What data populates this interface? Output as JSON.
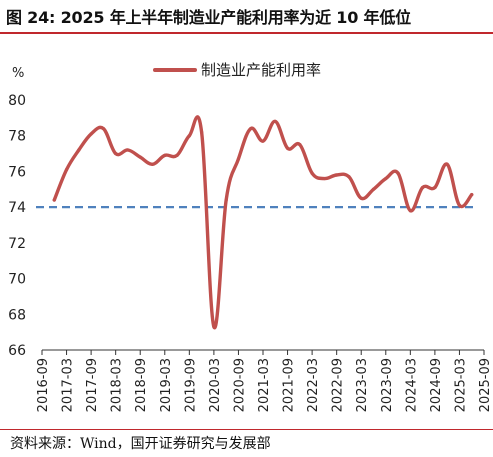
{
  "header": {
    "title": "图 24: 2025 年上半年制造业产能利用率为近 10 年低位"
  },
  "source": {
    "text": "资料来源：Wind，国开证券研究与发展部"
  },
  "colors": {
    "title_rule": "#c0282d",
    "series_line": "#c0504d",
    "reference_line": "#4f81bd"
  },
  "chart_data": {
    "type": "line",
    "ylabel": "%",
    "ylim": [
      66,
      80
    ],
    "yticks": [
      66,
      68,
      70,
      72,
      74,
      76,
      78,
      80
    ],
    "xticks": [
      "2016-09",
      "2017-03",
      "2017-09",
      "2018-03",
      "2018-09",
      "2019-03",
      "2019-09",
      "2020-03",
      "2020-09",
      "2021-03",
      "2021-09",
      "2022-03",
      "2022-09",
      "2023-03",
      "2023-09",
      "2024-03",
      "2024-09",
      "2025-03",
      "2025-09"
    ],
    "legend": {
      "position": "top-center",
      "label": "制造业产能利用率"
    },
    "grid": false,
    "series": [
      {
        "name": "制造业产能利用率",
        "x": [
          "2016-12",
          "2017-03",
          "2017-06",
          "2017-09",
          "2017-12",
          "2018-03",
          "2018-06",
          "2018-09",
          "2018-12",
          "2019-03",
          "2019-06",
          "2019-09",
          "2019-12",
          "2020-03",
          "2020-06",
          "2020-09",
          "2020-12",
          "2021-03",
          "2021-06",
          "2021-09",
          "2021-12",
          "2022-03",
          "2022-06",
          "2022-09",
          "2022-12",
          "2023-03",
          "2023-06",
          "2023-09",
          "2023-12",
          "2024-03",
          "2024-06",
          "2024-09",
          "2024-12",
          "2025-03",
          "2025-06"
        ],
        "values": [
          74.4,
          76.1,
          77.2,
          78.1,
          78.4,
          77.0,
          77.2,
          76.8,
          76.4,
          76.9,
          76.9,
          78.0,
          78.2,
          67.3,
          74.4,
          76.7,
          78.4,
          77.7,
          78.8,
          77.3,
          77.5,
          75.9,
          75.6,
          75.8,
          75.7,
          74.5,
          75.0,
          75.6,
          75.9,
          73.8,
          75.1,
          75.1,
          76.4,
          74.1,
          74.7
        ]
      }
    ],
    "reference_line": {
      "value": 74.0,
      "style": "dashed"
    }
  }
}
